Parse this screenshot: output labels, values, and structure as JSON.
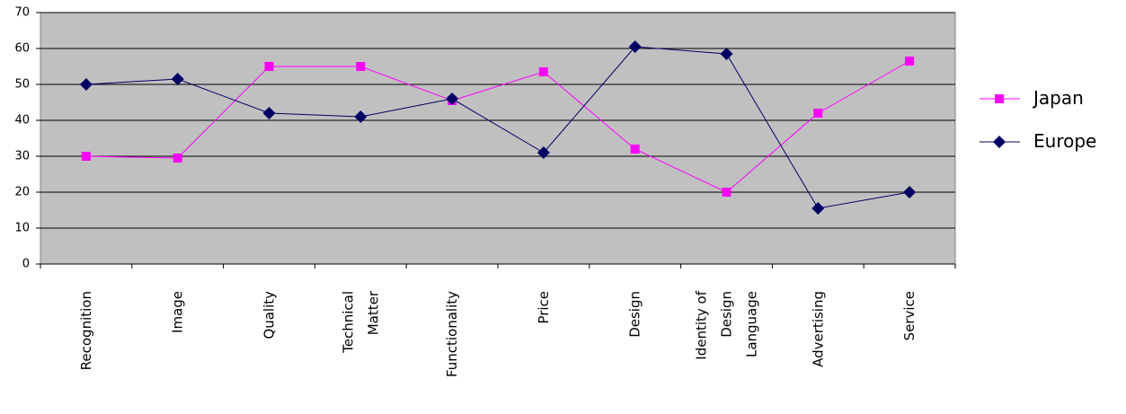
{
  "chart_data": {
    "type": "line",
    "categories": [
      "Recognition",
      "Image",
      "Quality",
      "Technical Matter",
      "Functionality",
      "Price",
      "Design",
      "Identity of Design Language",
      "Advertising",
      "Service"
    ],
    "series": [
      {
        "name": "Japan",
        "color": "#ff00ff",
        "marker": "square",
        "values": [
          30,
          29.5,
          55,
          55,
          45.5,
          53.5,
          32,
          20,
          42,
          56.5
        ]
      },
      {
        "name": "Europe",
        "color": "#000066",
        "marker": "diamond",
        "values": [
          50,
          51.5,
          42,
          41,
          46,
          31,
          60.5,
          58.5,
          15.5,
          20
        ]
      }
    ],
    "ylim": [
      0,
      70
    ],
    "yticks": [
      0,
      10,
      20,
      30,
      40,
      50,
      60,
      70
    ],
    "grid": true,
    "legend": "right"
  }
}
